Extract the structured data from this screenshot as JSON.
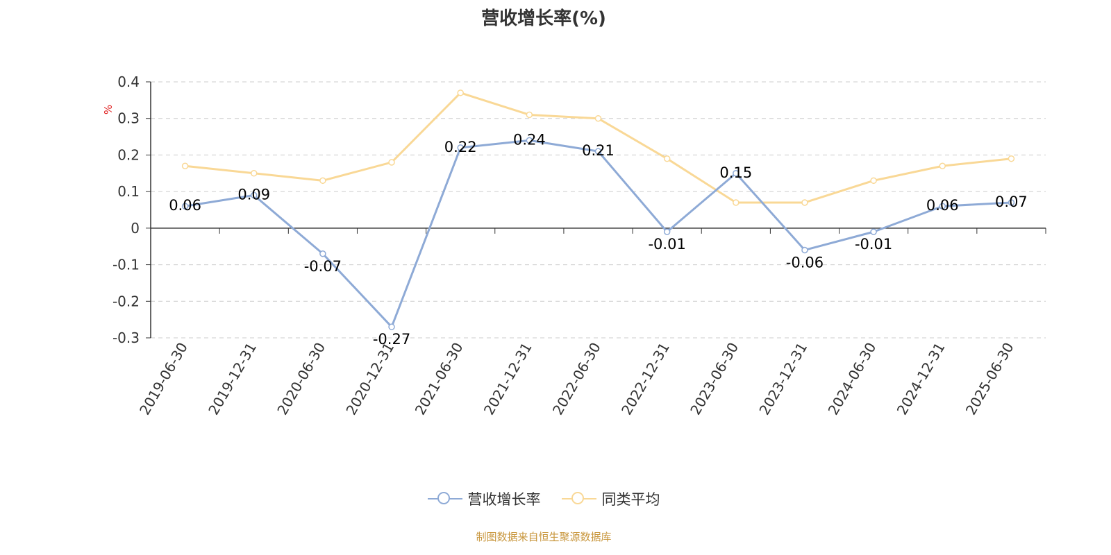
{
  "chart_data": {
    "type": "line",
    "title": "营收增长率(%)",
    "ylabel": "%",
    "xlabel": "",
    "ylim": [
      -0.3,
      0.4
    ],
    "yticks": [
      0.4,
      0.3,
      0.2,
      0.1,
      0,
      -0.1,
      -0.2,
      -0.3
    ],
    "ytick_labels": [
      "0.4",
      "0.3",
      "0.2",
      "0.1",
      "0",
      "-0.1",
      "-0.2",
      "-0.3"
    ],
    "grid": true,
    "legend_position": "bottom-center",
    "categories": [
      "2019-06-30",
      "2019-12-31",
      "2020-06-30",
      "2020-12-31",
      "2021-06-30",
      "2021-12-31",
      "2022-06-30",
      "2022-12-31",
      "2023-06-30",
      "2023-12-31",
      "2024-06-30",
      "2024-12-31",
      "2025-06-30"
    ],
    "series": [
      {
        "name": "营收增长率",
        "color": "#8eaad6",
        "values": [
          0.06,
          0.09,
          -0.07,
          -0.27,
          0.22,
          0.24,
          0.21,
          -0.01,
          0.15,
          -0.06,
          -0.01,
          0.06,
          0.07
        ],
        "labels": [
          "0.06",
          "0.09",
          "-0.07",
          "-0.27",
          "0.22",
          "0.24",
          "0.21",
          "-0.01",
          "0.15",
          "-0.06",
          "-0.01",
          "0.06",
          "0.07"
        ]
      },
      {
        "name": "同类平均",
        "color": "#f9d896",
        "values": [
          0.17,
          0.15,
          0.13,
          0.18,
          0.37,
          0.31,
          0.3,
          0.19,
          0.07,
          0.07,
          0.13,
          0.17,
          0.19
        ]
      }
    ]
  },
  "source_text": "制图数据来自恒生聚源数据库"
}
